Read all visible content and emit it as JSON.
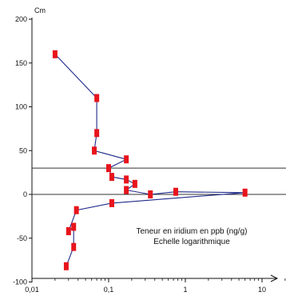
{
  "chart_data": {
    "type": "line",
    "title": "",
    "ylabel": "Cm",
    "xlabel": "",
    "x_scale": "log",
    "xlim": [
      0.01,
      20
    ],
    "ylim": [
      -100,
      200
    ],
    "x_ticks": [
      0.01,
      0.1,
      1,
      10
    ],
    "x_tick_labels": [
      "0,01",
      "0,1",
      "1",
      "10"
    ],
    "y_ticks": [
      -100,
      -50,
      0,
      50,
      100,
      150,
      200
    ],
    "y_tick_labels": [
      "-100",
      "-50",
      "0",
      "50",
      "100",
      "150",
      "200"
    ],
    "reference_lines_y": [
      30,
      0
    ],
    "annotations": [
      "Teneur en iridium en ppb (ng/g)",
      "Echelle logarithmique"
    ],
    "colors": {
      "line": "#1f2a8a",
      "marker": "#e8141c",
      "axis": "#111111",
      "reference": "#333333"
    },
    "series": [
      {
        "x": [
          0.02,
          0.07,
          0.07,
          0.065,
          0.17,
          0.1,
          0.11,
          0.17,
          0.22,
          0.17,
          0.35,
          0.75,
          6,
          0.11,
          0.038,
          0.03,
          0.035,
          0.035,
          0.028
        ],
        "y": [
          160,
          110,
          70,
          50,
          40,
          30,
          20,
          17,
          12,
          5,
          0,
          3,
          2,
          -10,
          -18,
          -42,
          -37,
          -60,
          -82
        ]
      }
    ]
  }
}
